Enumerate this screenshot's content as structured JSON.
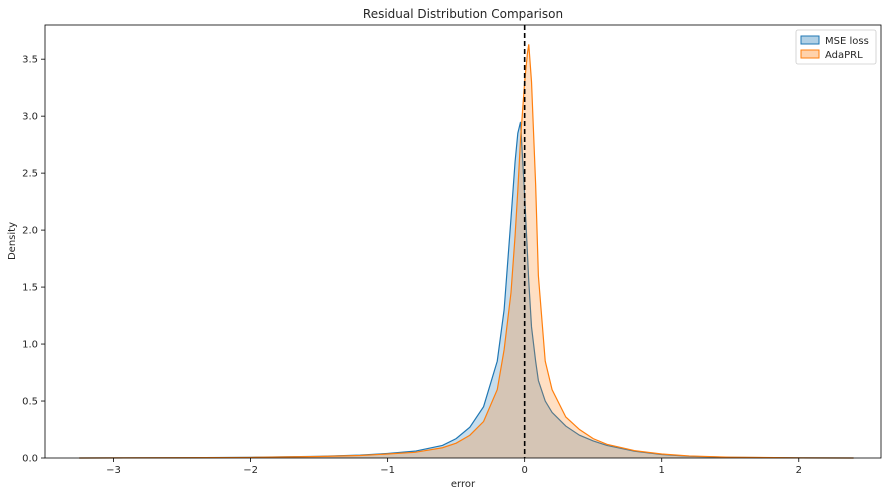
{
  "chart_data": {
    "type": "area",
    "title": "Residual Distribution Comparison",
    "xlabel": "error",
    "ylabel": "Density",
    "xlim": [
      -3.5,
      2.6
    ],
    "ylim": [
      0,
      3.8
    ],
    "xticks": [
      -3,
      -2,
      -1,
      0,
      1,
      2
    ],
    "xtick_labels": [
      "−3",
      "−2",
      "−1",
      "0",
      "1",
      "2"
    ],
    "yticks": [
      0.0,
      0.5,
      1.0,
      1.5,
      2.0,
      2.5,
      3.0,
      3.5
    ],
    "ytick_labels": [
      "0.0",
      "0.5",
      "1.0",
      "1.5",
      "2.0",
      "2.5",
      "3.0",
      "3.5"
    ],
    "grid": false,
    "legend_position": "top-right",
    "reference_line": {
      "x": 0,
      "style": "dashed",
      "color": "#000000"
    },
    "series": [
      {
        "name": "MSE loss",
        "color": "#1f77b4",
        "x": [
          -3.25,
          -2.5,
          -2.0,
          -1.5,
          -1.2,
          -1.0,
          -0.8,
          -0.6,
          -0.5,
          -0.4,
          -0.3,
          -0.2,
          -0.15,
          -0.1,
          -0.07,
          -0.05,
          -0.03,
          0.0,
          0.03,
          0.05,
          0.08,
          0.1,
          0.15,
          0.2,
          0.3,
          0.4,
          0.5,
          0.6,
          0.8,
          1.0,
          1.2,
          1.5,
          2.0,
          2.4
        ],
        "y": [
          0.0,
          0.002,
          0.006,
          0.015,
          0.025,
          0.04,
          0.06,
          0.11,
          0.17,
          0.27,
          0.45,
          0.85,
          1.3,
          2.1,
          2.6,
          2.85,
          2.95,
          2.3,
          1.55,
          1.15,
          0.85,
          0.68,
          0.5,
          0.4,
          0.28,
          0.2,
          0.15,
          0.11,
          0.06,
          0.03,
          0.015,
          0.006,
          0.001,
          0.0
        ]
      },
      {
        "name": "AdaPRL",
        "color": "#ff7f0e",
        "x": [
          -3.25,
          -2.5,
          -2.0,
          -1.5,
          -1.2,
          -1.0,
          -0.8,
          -0.6,
          -0.5,
          -0.4,
          -0.3,
          -0.2,
          -0.15,
          -0.1,
          -0.07,
          -0.05,
          -0.03,
          0.0,
          0.02,
          0.03,
          0.05,
          0.08,
          0.1,
          0.15,
          0.2,
          0.3,
          0.4,
          0.5,
          0.6,
          0.8,
          1.0,
          1.2,
          1.5,
          2.0,
          2.4
        ],
        "y": [
          0.0,
          0.002,
          0.005,
          0.013,
          0.022,
          0.035,
          0.05,
          0.09,
          0.13,
          0.2,
          0.32,
          0.6,
          0.95,
          1.45,
          1.95,
          2.35,
          2.8,
          3.3,
          3.55,
          3.63,
          3.3,
          2.4,
          1.6,
          0.85,
          0.6,
          0.36,
          0.25,
          0.17,
          0.12,
          0.065,
          0.035,
          0.018,
          0.007,
          0.001,
          0.0
        ]
      }
    ]
  }
}
